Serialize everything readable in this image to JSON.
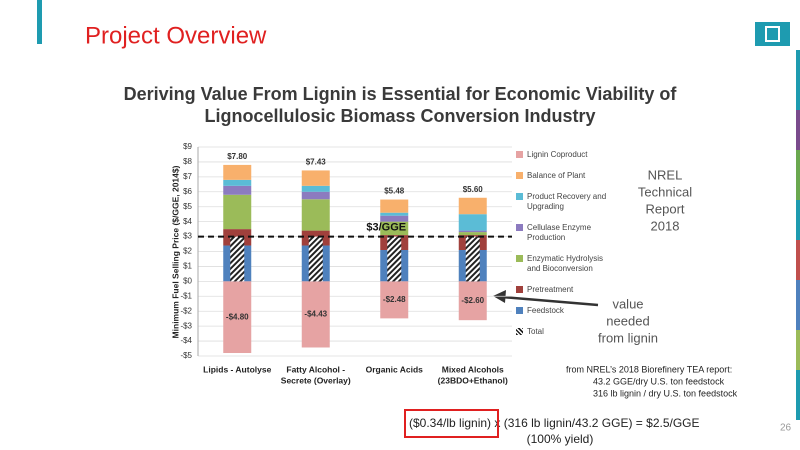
{
  "slide": {
    "heading": "Project Overview",
    "title": [
      "Deriving Value From Lignin is Essential for Economic Viability of",
      "Lignocellulosic Biomass Conversion Industry"
    ],
    "note": [
      "NREL",
      "Technical",
      "Report",
      "2018"
    ],
    "callout": [
      "value",
      "needed",
      "from lignin"
    ],
    "source": [
      "from NREL’s 2018 Biorefinery TEA report:",
      "43.2 GGE/dry U.S. ton feedstock",
      "316 lb lignin / dry U.S. ton feedstock"
    ],
    "equation": [
      "($0.34/lb lignin)",
      " x (316 lb lignin/43.2 GGE) = $2.5/GGE"
    ],
    "equation_note": "(100% yield)",
    "page": "26"
  },
  "chart_data": {
    "type": "stacked_bar",
    "ylabel": "Minimum Fuel Selling Price ($/GGE, 2014$)",
    "categories": [
      [
        "Lipids - Autolyse"
      ],
      [
        "Fatty Alcohol -",
        "Secrete (Overlay)"
      ],
      [
        "Organic Acids"
      ],
      [
        "Mixed Alcohols",
        "(23BDO+Ethanol)"
      ]
    ],
    "series": [
      {
        "name": "Lignin Coproduct",
        "color": "#e6a3a3",
        "values": [
          -4.8,
          -4.43,
          -2.48,
          -2.6
        ],
        "value_labels": [
          "-$4.80",
          "-$4.43",
          "-$2.48",
          "-$2.60"
        ]
      },
      {
        "name": "Balance of Plant",
        "color": "#f8b06c",
        "values": [
          1.0,
          1.03,
          0.88,
          1.1
        ]
      },
      {
        "name": "Product Recovery and Upgrading",
        "color": "#5bbcd6",
        "values": [
          0.4,
          0.4,
          0.2,
          1.1
        ]
      },
      {
        "name": "Cellulase Enzyme Production",
        "color": "#8c7bbf",
        "values": [
          0.6,
          0.5,
          0.4,
          0.1
        ]
      },
      {
        "name": "Enzymatic Hydrolysis and Bioconversion",
        "color": "#9bbb59",
        "values": [
          2.3,
          2.1,
          0.9,
          0.2
        ]
      },
      {
        "name": "Pretreatment",
        "color": "#a0403c",
        "values": [
          1.1,
          1.0,
          1.0,
          1.0
        ]
      },
      {
        "name": "Feedstock",
        "color": "#4f81bd",
        "values": [
          2.4,
          2.4,
          2.1,
          2.1
        ]
      },
      {
        "name": "Total",
        "color": "#222222",
        "pattern": "hatch",
        "values": [
          3.0,
          3.0,
          3.0,
          3.0
        ]
      }
    ],
    "positive_totals": {
      "values": [
        7.8,
        7.43,
        5.48,
        5.6
      ],
      "value_labels": [
        "$7.80",
        "$7.43",
        "$5.48",
        "$5.60"
      ]
    },
    "reference_line": {
      "value": 3,
      "label": "$3/GGE"
    },
    "ylim": [
      -5,
      9
    ],
    "yticks": [
      {
        "value": -5,
        "label": "-$5"
      },
      {
        "value": -4,
        "label": "-$4"
      },
      {
        "value": -3,
        "label": "-$3"
      },
      {
        "value": -2,
        "label": "-$2"
      },
      {
        "value": -1,
        "label": "-$1"
      },
      {
        "value": 0,
        "label": "$0"
      },
      {
        "value": 1,
        "label": "$1"
      },
      {
        "value": 2,
        "label": "$2"
      },
      {
        "value": 3,
        "label": "$3"
      },
      {
        "value": 4,
        "label": "$4"
      },
      {
        "value": 5,
        "label": "$5"
      },
      {
        "value": 6,
        "label": "$6"
      },
      {
        "value": 7,
        "label": "$7"
      },
      {
        "value": 8,
        "label": "$8"
      },
      {
        "value": 9,
        "label": "$9"
      }
    ],
    "grid": true
  }
}
